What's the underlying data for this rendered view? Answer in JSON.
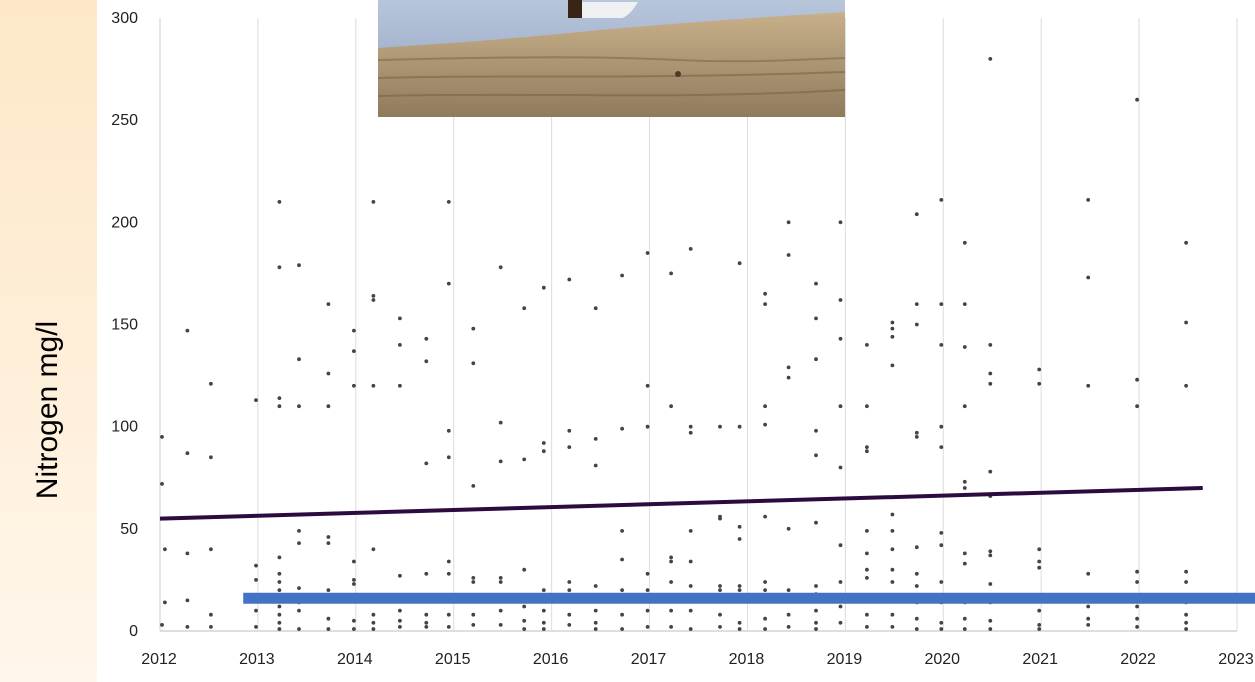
{
  "chart_data": {
    "type": "scatter",
    "ylabel": "Nitrogen mg/l",
    "xlabel": "",
    "title": "",
    "xlim": [
      2012,
      2023
    ],
    "ylim": [
      0,
      300
    ],
    "x_ticks": [
      "2012",
      "2013",
      "2014",
      "2015",
      "2016",
      "2017",
      "2018",
      "2019",
      "2020",
      "2021",
      "2022",
      "2023"
    ],
    "y_ticks": [
      "0",
      "50",
      "100",
      "150",
      "200",
      "250",
      "300"
    ],
    "grid": "vertical",
    "colors": {
      "points": "#444444",
      "trend": "#2d0b3f",
      "threshold": "#4472c4"
    },
    "trend_line": {
      "x": [
        2012.0,
        2022.65
      ],
      "y": [
        55,
        70
      ]
    },
    "threshold_line": {
      "x": [
        2012.85,
        2023.2
      ],
      "y": [
        16,
        16
      ]
    },
    "points": [
      [
        2012.02,
        95
      ],
      [
        2012.02,
        72
      ],
      [
        2012.05,
        40
      ],
      [
        2012.05,
        14
      ],
      [
        2012.02,
        3
      ],
      [
        2012.28,
        147
      ],
      [
        2012.28,
        87
      ],
      [
        2012.28,
        38
      ],
      [
        2012.28,
        15
      ],
      [
        2012.28,
        2
      ],
      [
        2012.52,
        121
      ],
      [
        2012.52,
        85
      ],
      [
        2012.52,
        40
      ],
      [
        2012.52,
        8
      ],
      [
        2012.52,
        2
      ],
      [
        2012.98,
        113
      ],
      [
        2012.98,
        32
      ],
      [
        2012.98,
        25
      ],
      [
        2012.98,
        10
      ],
      [
        2012.98,
        2
      ],
      [
        2013.22,
        210
      ],
      [
        2013.22,
        178
      ],
      [
        2013.22,
        114
      ],
      [
        2013.22,
        110
      ],
      [
        2013.22,
        36
      ],
      [
        2013.22,
        28
      ],
      [
        2013.22,
        24
      ],
      [
        2013.22,
        20
      ],
      [
        2013.22,
        12
      ],
      [
        2013.22,
        8
      ],
      [
        2013.22,
        4
      ],
      [
        2013.22,
        1
      ],
      [
        2013.42,
        179
      ],
      [
        2013.42,
        133
      ],
      [
        2013.42,
        110
      ],
      [
        2013.42,
        49
      ],
      [
        2013.42,
        43
      ],
      [
        2013.42,
        21
      ],
      [
        2013.42,
        14
      ],
      [
        2013.42,
        10
      ],
      [
        2013.42,
        1
      ],
      [
        2013.72,
        160
      ],
      [
        2013.72,
        126
      ],
      [
        2013.72,
        110
      ],
      [
        2013.72,
        46
      ],
      [
        2013.72,
        43
      ],
      [
        2013.72,
        20
      ],
      [
        2013.72,
        6
      ],
      [
        2013.72,
        1
      ],
      [
        2013.98,
        147
      ],
      [
        2013.98,
        137
      ],
      [
        2013.98,
        120
      ],
      [
        2013.98,
        34
      ],
      [
        2013.98,
        25
      ],
      [
        2013.98,
        23
      ],
      [
        2013.98,
        5
      ],
      [
        2013.98,
        1
      ],
      [
        2014.18,
        210
      ],
      [
        2014.18,
        164
      ],
      [
        2014.18,
        162
      ],
      [
        2014.18,
        120
      ],
      [
        2014.18,
        40
      ],
      [
        2014.18,
        8
      ],
      [
        2014.18,
        4
      ],
      [
        2014.18,
        1
      ],
      [
        2014.45,
        153
      ],
      [
        2014.45,
        140
      ],
      [
        2014.45,
        120
      ],
      [
        2014.45,
        27
      ],
      [
        2014.45,
        10
      ],
      [
        2014.45,
        5
      ],
      [
        2014.45,
        2
      ],
      [
        2014.72,
        143
      ],
      [
        2014.72,
        132
      ],
      [
        2014.72,
        82
      ],
      [
        2014.72,
        28
      ],
      [
        2014.72,
        8
      ],
      [
        2014.72,
        4
      ],
      [
        2014.72,
        2
      ],
      [
        2014.95,
        210
      ],
      [
        2014.95,
        170
      ],
      [
        2014.95,
        98
      ],
      [
        2014.95,
        85
      ],
      [
        2014.95,
        34
      ],
      [
        2014.95,
        28
      ],
      [
        2014.95,
        8
      ],
      [
        2014.95,
        2
      ],
      [
        2015.2,
        148
      ],
      [
        2015.2,
        131
      ],
      [
        2015.2,
        71
      ],
      [
        2015.2,
        26
      ],
      [
        2015.2,
        24
      ],
      [
        2015.2,
        8
      ],
      [
        2015.2,
        3
      ],
      [
        2015.48,
        178
      ],
      [
        2015.48,
        102
      ],
      [
        2015.48,
        83
      ],
      [
        2015.48,
        26
      ],
      [
        2015.48,
        24
      ],
      [
        2015.48,
        10
      ],
      [
        2015.48,
        3
      ],
      [
        2015.72,
        158
      ],
      [
        2015.72,
        84
      ],
      [
        2015.72,
        30
      ],
      [
        2015.72,
        12
      ],
      [
        2015.72,
        5
      ],
      [
        2015.72,
        1
      ],
      [
        2015.92,
        168
      ],
      [
        2015.92,
        92
      ],
      [
        2015.92,
        88
      ],
      [
        2015.92,
        20
      ],
      [
        2015.92,
        10
      ],
      [
        2015.92,
        4
      ],
      [
        2015.92,
        1
      ],
      [
        2016.18,
        172
      ],
      [
        2016.18,
        98
      ],
      [
        2016.18,
        90
      ],
      [
        2016.18,
        24
      ],
      [
        2016.18,
        20
      ],
      [
        2016.18,
        8
      ],
      [
        2016.18,
        3
      ],
      [
        2016.45,
        158
      ],
      [
        2016.45,
        94
      ],
      [
        2016.45,
        81
      ],
      [
        2016.45,
        22
      ],
      [
        2016.45,
        10
      ],
      [
        2016.45,
        4
      ],
      [
        2016.45,
        1
      ],
      [
        2016.72,
        174
      ],
      [
        2016.72,
        99
      ],
      [
        2016.72,
        49
      ],
      [
        2016.72,
        35
      ],
      [
        2016.72,
        20
      ],
      [
        2016.72,
        8
      ],
      [
        2016.72,
        1
      ],
      [
        2016.98,
        185
      ],
      [
        2016.98,
        120
      ],
      [
        2016.98,
        100
      ],
      [
        2016.98,
        28
      ],
      [
        2016.98,
        20
      ],
      [
        2016.98,
        10
      ],
      [
        2016.98,
        2
      ],
      [
        2017.22,
        175
      ],
      [
        2017.22,
        110
      ],
      [
        2017.22,
        36
      ],
      [
        2017.22,
        34
      ],
      [
        2017.22,
        24
      ],
      [
        2017.22,
        10
      ],
      [
        2017.22,
        2
      ],
      [
        2017.42,
        187
      ],
      [
        2017.42,
        100
      ],
      [
        2017.42,
        97
      ],
      [
        2017.42,
        49
      ],
      [
        2017.42,
        34
      ],
      [
        2017.42,
        22
      ],
      [
        2017.42,
        10
      ],
      [
        2017.42,
        1
      ],
      [
        2017.72,
        100
      ],
      [
        2017.72,
        56
      ],
      [
        2017.72,
        55
      ],
      [
        2017.72,
        22
      ],
      [
        2017.72,
        20
      ],
      [
        2017.72,
        8
      ],
      [
        2017.72,
        2
      ],
      [
        2017.92,
        180
      ],
      [
        2017.92,
        100
      ],
      [
        2017.92,
        51
      ],
      [
        2017.92,
        45
      ],
      [
        2017.92,
        22
      ],
      [
        2017.92,
        20
      ],
      [
        2017.92,
        4
      ],
      [
        2017.92,
        1
      ],
      [
        2018.18,
        165
      ],
      [
        2018.18,
        160
      ],
      [
        2018.18,
        110
      ],
      [
        2018.18,
        101
      ],
      [
        2018.18,
        56
      ],
      [
        2018.18,
        24
      ],
      [
        2018.18,
        20
      ],
      [
        2018.18,
        6
      ],
      [
        2018.18,
        1
      ],
      [
        2018.42,
        200
      ],
      [
        2018.42,
        184
      ],
      [
        2018.42,
        129
      ],
      [
        2018.42,
        124
      ],
      [
        2018.42,
        50
      ],
      [
        2018.42,
        20
      ],
      [
        2018.42,
        8
      ],
      [
        2018.42,
        2
      ],
      [
        2018.7,
        170
      ],
      [
        2018.7,
        153
      ],
      [
        2018.7,
        133
      ],
      [
        2018.7,
        98
      ],
      [
        2018.7,
        86
      ],
      [
        2018.7,
        53
      ],
      [
        2018.7,
        22
      ],
      [
        2018.7,
        18
      ],
      [
        2018.7,
        10
      ],
      [
        2018.7,
        4
      ],
      [
        2018.7,
        1
      ],
      [
        2018.95,
        200
      ],
      [
        2018.95,
        162
      ],
      [
        2018.95,
        143
      ],
      [
        2018.95,
        110
      ],
      [
        2018.95,
        80
      ],
      [
        2018.95,
        42
      ],
      [
        2018.95,
        24
      ],
      [
        2018.95,
        16
      ],
      [
        2018.95,
        12
      ],
      [
        2018.95,
        4
      ],
      [
        2019.22,
        140
      ],
      [
        2019.22,
        110
      ],
      [
        2019.22,
        90
      ],
      [
        2019.22,
        88
      ],
      [
        2019.22,
        49
      ],
      [
        2019.22,
        38
      ],
      [
        2019.22,
        30
      ],
      [
        2019.22,
        26
      ],
      [
        2019.22,
        16
      ],
      [
        2019.22,
        8
      ],
      [
        2019.22,
        2
      ],
      [
        2019.48,
        151
      ],
      [
        2019.48,
        148
      ],
      [
        2019.48,
        144
      ],
      [
        2019.48,
        130
      ],
      [
        2019.48,
        57
      ],
      [
        2019.48,
        49
      ],
      [
        2019.48,
        40
      ],
      [
        2019.48,
        30
      ],
      [
        2019.48,
        24
      ],
      [
        2019.48,
        16
      ],
      [
        2019.48,
        8
      ],
      [
        2019.48,
        2
      ],
      [
        2019.73,
        204
      ],
      [
        2019.73,
        160
      ],
      [
        2019.73,
        150
      ],
      [
        2019.73,
        97
      ],
      [
        2019.73,
        95
      ],
      [
        2019.73,
        41
      ],
      [
        2019.73,
        28
      ],
      [
        2019.73,
        22
      ],
      [
        2019.73,
        14
      ],
      [
        2019.73,
        6
      ],
      [
        2019.73,
        1
      ],
      [
        2019.98,
        211
      ],
      [
        2019.98,
        160
      ],
      [
        2019.98,
        140
      ],
      [
        2019.98,
        100
      ],
      [
        2019.98,
        90
      ],
      [
        2019.98,
        48
      ],
      [
        2019.98,
        42
      ],
      [
        2019.98,
        24
      ],
      [
        2019.98,
        14
      ],
      [
        2019.98,
        4
      ],
      [
        2019.98,
        1
      ],
      [
        2020.22,
        190
      ],
      [
        2020.22,
        160
      ],
      [
        2020.22,
        139
      ],
      [
        2020.22,
        110
      ],
      [
        2020.22,
        73
      ],
      [
        2020.22,
        70
      ],
      [
        2020.22,
        38
      ],
      [
        2020.22,
        33
      ],
      [
        2020.22,
        14
      ],
      [
        2020.22,
        6
      ],
      [
        2020.22,
        1
      ],
      [
        2020.48,
        280
      ],
      [
        2020.48,
        140
      ],
      [
        2020.48,
        126
      ],
      [
        2020.48,
        121
      ],
      [
        2020.48,
        78
      ],
      [
        2020.48,
        66
      ],
      [
        2020.48,
        39
      ],
      [
        2020.48,
        37
      ],
      [
        2020.48,
        23
      ],
      [
        2020.48,
        14
      ],
      [
        2020.48,
        5
      ],
      [
        2020.48,
        1
      ],
      [
        2020.98,
        128
      ],
      [
        2020.98,
        121
      ],
      [
        2020.98,
        40
      ],
      [
        2020.98,
        34
      ],
      [
        2020.98,
        31
      ],
      [
        2020.98,
        10
      ],
      [
        2020.98,
        3
      ],
      [
        2020.98,
        1
      ],
      [
        2021.48,
        211
      ],
      [
        2021.48,
        173
      ],
      [
        2021.48,
        120
      ],
      [
        2021.48,
        28
      ],
      [
        2021.48,
        12
      ],
      [
        2021.48,
        6
      ],
      [
        2021.48,
        3
      ],
      [
        2021.98,
        260
      ],
      [
        2021.98,
        123
      ],
      [
        2021.98,
        110
      ],
      [
        2021.98,
        29
      ],
      [
        2021.98,
        24
      ],
      [
        2021.98,
        12
      ],
      [
        2021.98,
        6
      ],
      [
        2021.98,
        2
      ],
      [
        2022.48,
        190
      ],
      [
        2022.48,
        151
      ],
      [
        2022.48,
        120
      ],
      [
        2022.48,
        29
      ],
      [
        2022.48,
        24
      ],
      [
        2022.48,
        14
      ],
      [
        2022.48,
        8
      ],
      [
        2022.48,
        4
      ],
      [
        2022.48,
        1
      ]
    ]
  }
}
